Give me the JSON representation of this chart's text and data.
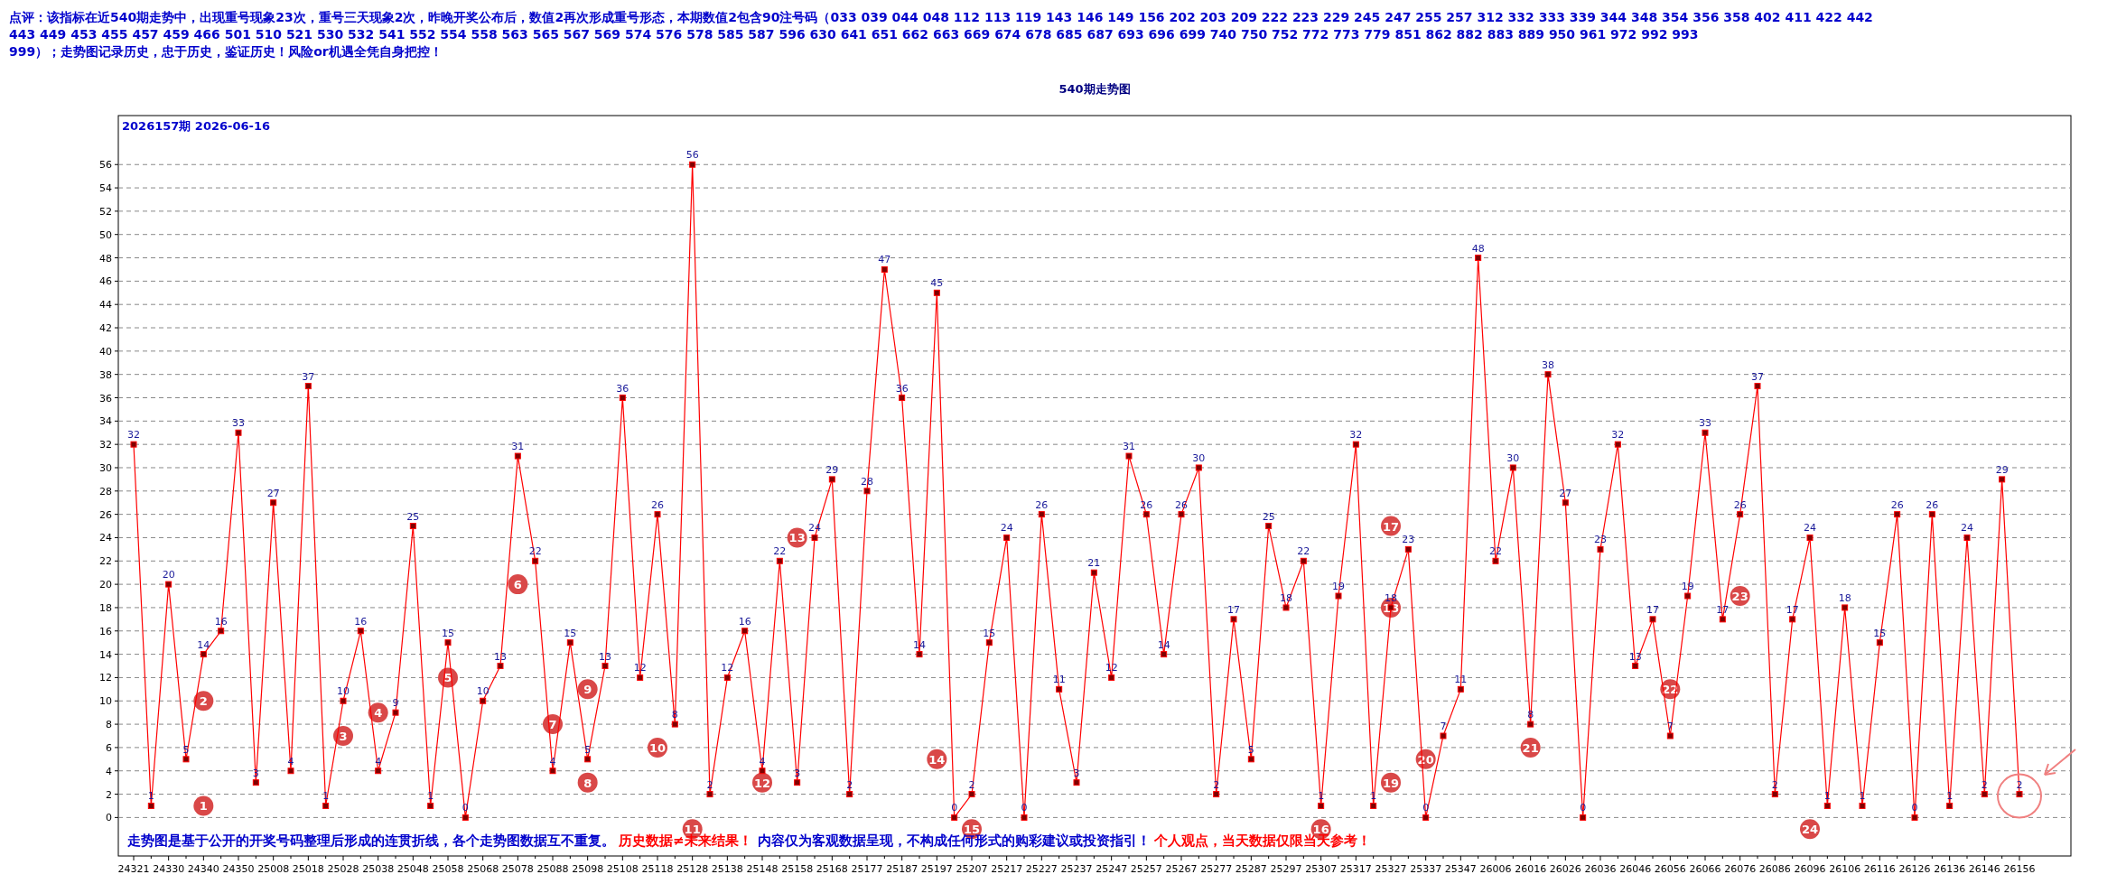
{
  "chart_data": {
    "type": "line",
    "title": "540期走势图",
    "subtitle": "2026157期  2026-06-16",
    "categories": [
      "24321",
      null,
      "24330",
      null,
      "24340",
      null,
      "24350",
      null,
      "25008",
      null,
      "25018",
      null,
      "25028",
      null,
      "25038",
      null,
      "25048",
      null,
      "25058",
      null,
      "25068",
      null,
      "25078",
      null,
      "25088",
      null,
      "25098",
      null,
      "25108",
      null,
      "25118",
      null,
      "25128",
      null,
      "25138",
      null,
      "25148",
      null,
      "25158",
      null,
      "25168",
      null,
      "25177",
      null,
      "25187",
      null,
      "25197",
      null,
      "25207",
      null,
      "25217",
      null,
      "25227",
      null,
      "25237",
      null,
      "25247",
      null,
      "25257",
      null,
      "25267",
      null,
      "25277",
      null,
      "25287",
      null,
      "25297",
      null,
      "25307",
      null,
      "25317",
      null,
      "25327",
      null,
      "25337",
      null,
      "25347",
      null,
      "26006",
      null,
      "26016",
      null,
      "26026",
      null,
      "26036",
      null,
      "26046",
      null,
      "26056",
      null,
      "26066",
      null,
      "26076",
      null,
      "26086",
      null,
      "26096",
      null,
      "26106",
      null,
      "26116",
      null,
      "26126",
      null,
      "26136",
      null,
      "26146",
      null,
      "26156"
    ],
    "series": [
      {
        "color": "#ff0000",
        "values": [
          32,
          1,
          20,
          5,
          14,
          16,
          33,
          3,
          27,
          4,
          37,
          1,
          10,
          16,
          4,
          9,
          25,
          1,
          15,
          0,
          10,
          13,
          31,
          22,
          4,
          15,
          5,
          13,
          36,
          12,
          26,
          8,
          56,
          2,
          12,
          16,
          4,
          22,
          3,
          24,
          29,
          2,
          28,
          47,
          36,
          14,
          45,
          0,
          2,
          15,
          24,
          0,
          26,
          11,
          3,
          21,
          12,
          31,
          26,
          14,
          26,
          30,
          2,
          17,
          5,
          25,
          18,
          22,
          1,
          19,
          32,
          1,
          18,
          23,
          0,
          7,
          11,
          48,
          22,
          30,
          8,
          38,
          27,
          0,
          23,
          32,
          13,
          17,
          7,
          19,
          33,
          17,
          26,
          37,
          2,
          17,
          24,
          1,
          18,
          1,
          15,
          26,
          0,
          26,
          1,
          24,
          2,
          29,
          2
        ]
      }
    ],
    "ylim": [
      -3.3,
      60.2
    ],
    "yticks": [
      0,
      2,
      4,
      6,
      8,
      10,
      12,
      14,
      16,
      18,
      20,
      22,
      24,
      26,
      28,
      30,
      32,
      34,
      36,
      38,
      40,
      42,
      44,
      46,
      48,
      50,
      52,
      54,
      56
    ],
    "grid": "y",
    "marker": "square",
    "data_labels": true,
    "annotations": [
      "点评：该指标在近540期走势中，出现重号现象23次，重号三天现象2次，昨晚开奖公布后，数值2再次形成重号形态，本期数值2包含90注号码（033  039  044  048  112  113  119  143  146  149  156  202  203  209  222  223  229  245  247  255  257  312  332  333  339  344  348  354  356  358  402  411  422  442  443  449  453  455  457  459  466  501  510  521  530  532  541  552  554  558  563  565  567  569  574  576  578  585  587  596  630  641  651  662  663  669  674  678  685  687  693  696  699  740  750  752  772  773  779  851  862  882  883  889  950  961  972  992  993  999）；走势图记录历史，忠于历史，鉴证历史！风险or机遇全凭自身把控！",
      "走势图是基于公开的开奖号码整理后形成的连贯折线，各个走势图数据互不重复。",
      "历史数据≠未来结果！",
      "内容仅为客观数据呈现，不构成任何形式的购彩建议或投资指引！",
      "个人观点，当天数据仅限当天参考！",
      {
        "text": "1",
        "x": "24340",
        "y": 1
      },
      {
        "text": "2",
        "x": "24340",
        "y": 10
      },
      {
        "text": "3",
        "x": "25028",
        "y": 7
      },
      {
        "text": "4",
        "x": "25038",
        "y": 9
      },
      {
        "text": "5",
        "x": "25058",
        "y": 12
      },
      {
        "text": "6",
        "x": "25078",
        "y": 20
      },
      {
        "text": "7",
        "x": "25088",
        "y": 8
      },
      {
        "text": "8",
        "x": "25098",
        "y": 3
      },
      {
        "text": "9",
        "x": "25098",
        "y": 11
      },
      {
        "text": "10",
        "x": "25118",
        "y": 6
      },
      {
        "text": "11",
        "x": "25128",
        "y": -1
      },
      {
        "text": "12",
        "x": "25148",
        "y": 3
      },
      {
        "text": "13",
        "x": "25158",
        "y": 24
      },
      {
        "text": "14",
        "x": "25197",
        "y": 5
      },
      {
        "text": "15",
        "x": "25207",
        "y": -1
      },
      {
        "text": "16",
        "x": "25307",
        "y": -1
      },
      {
        "text": "17",
        "x": "25327",
        "y": 25
      },
      {
        "text": "18",
        "x": "25327",
        "y": 18
      },
      {
        "text": "19",
        "x": "25327",
        "y": 3
      },
      {
        "text": "20",
        "x": "25337",
        "y": 5
      },
      {
        "text": "21",
        "x": "26016",
        "y": 6
      },
      {
        "text": "22",
        "x": "26056",
        "y": 11
      },
      {
        "text": "23",
        "x": "26076",
        "y": 19
      },
      {
        "text": "24",
        "x": "26096",
        "y": -1
      }
    ]
  }
}
